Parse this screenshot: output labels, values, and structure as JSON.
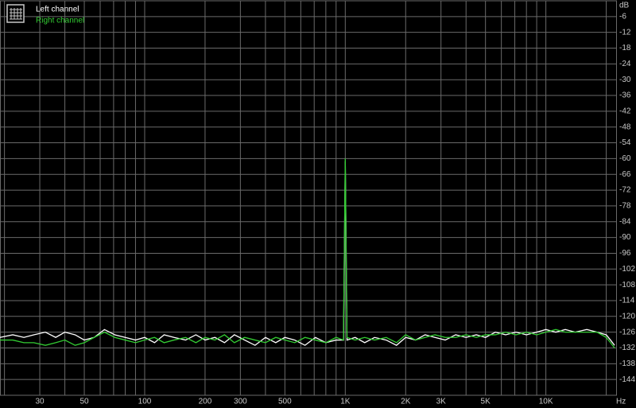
{
  "chart_data": {
    "type": "line",
    "x_unit": "Hz",
    "y_unit": "dB",
    "x": [
      19,
      22,
      25,
      28,
      32,
      36,
      40,
      45,
      50,
      56,
      63,
      71,
      80,
      90,
      100,
      112,
      125,
      140,
      160,
      180,
      200,
      224,
      250,
      280,
      315,
      355,
      400,
      450,
      500,
      560,
      630,
      710,
      800,
      900,
      980,
      1000,
      1020,
      1120,
      1250,
      1400,
      1600,
      1800,
      2000,
      2240,
      2500,
      2800,
      3150,
      3550,
      4000,
      4500,
      5000,
      5600,
      6300,
      7100,
      8000,
      9000,
      10000,
      11200,
      12500,
      14000,
      16000,
      18000,
      20000,
      21000,
      22000
    ],
    "series": [
      {
        "name": "Left channel",
        "color": "#ffffff",
        "values": [
          -128,
          -127,
          -128,
          -127,
          -126,
          -128,
          -126,
          -127,
          -129,
          -128,
          -125,
          -127,
          -128,
          -129,
          -128,
          -130,
          -127,
          -128,
          -129,
          -127,
          -129,
          -128,
          -130,
          -127,
          -129,
          -131,
          -128,
          -130,
          -128,
          -129,
          -131,
          -128,
          -130,
          -129,
          -129,
          -61,
          -129,
          -128,
          -130,
          -128,
          -129,
          -131,
          -128,
          -129,
          -127,
          -128,
          -129,
          -127,
          -128,
          -127,
          -128,
          -126,
          -127,
          -126,
          -127,
          -126,
          -125,
          -126,
          -125,
          -126,
          -125,
          -126,
          -127,
          -129,
          -131
        ]
      },
      {
        "name": "Right channel",
        "color": "#33cc33",
        "values": [
          -129,
          -129,
          -130,
          -130,
          -131,
          -130,
          -129,
          -131,
          -130,
          -128,
          -126,
          -128,
          -129,
          -130,
          -129,
          -128,
          -130,
          -129,
          -128,
          -130,
          -128,
          -129,
          -127,
          -130,
          -128,
          -129,
          -130,
          -128,
          -129,
          -130,
          -128,
          -129,
          -130,
          -128,
          -129,
          -60,
          -128,
          -129,
          -128,
          -129,
          -128,
          -130,
          -127,
          -129,
          -128,
          -127,
          -128,
          -128,
          -127,
          -128,
          -127,
          -127,
          -126,
          -127,
          -126,
          -127,
          -126,
          -125,
          -126,
          -126,
          -126,
          -126,
          -128,
          -130,
          -132
        ]
      }
    ],
    "log_x": true,
    "xlim": [
      19,
      22400
    ],
    "xticks": [
      30,
      50,
      100,
      200,
      300,
      500,
      {
        "value": 1000,
        "label": "1K"
      },
      {
        "value": 2000,
        "label": "2K"
      },
      {
        "value": 3000,
        "label": "3K"
      },
      {
        "value": 5000,
        "label": "5K"
      },
      {
        "value": 10000,
        "label": "10K"
      }
    ],
    "minor_xticks": [
      20,
      40,
      60,
      70,
      80,
      90,
      400,
      600,
      700,
      800,
      900,
      4000,
      6000,
      7000,
      8000,
      9000,
      20000
    ],
    "ylim": [
      -150,
      0
    ],
    "yticks": [
      -6,
      -12,
      -18,
      -24,
      -30,
      -36,
      -42,
      -48,
      -54,
      -60,
      -66,
      -72,
      -78,
      -84,
      -90,
      -96,
      -102,
      -108,
      -114,
      -120,
      -126,
      -132,
      -138,
      -144
    ],
    "grid": true,
    "background": "#000000",
    "grid_color": "#6a6a6a"
  }
}
